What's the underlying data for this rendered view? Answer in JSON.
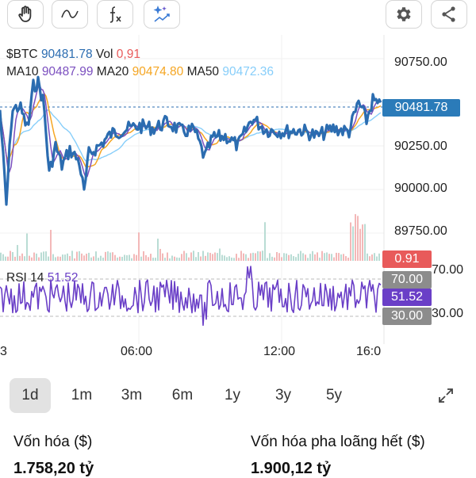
{
  "toolbar": {
    "tools": [
      "hand-icon",
      "wave-icon",
      "function-icon",
      "sparkle-chart-icon"
    ],
    "actions": [
      "gear-icon",
      "share-icon"
    ]
  },
  "legend": {
    "symbol": "$BTC",
    "price": "90481.78",
    "vol_label": "Vol",
    "vol": "0,91",
    "ma10_label": "MA10",
    "ma10": "90487.99",
    "ma20_label": "MA20",
    "ma20": "90474.80",
    "ma50_label": "MA50",
    "ma50": "90472.36",
    "rsi_label": "RSI 14",
    "rsi": "51.52"
  },
  "axis": {
    "y_labels": [
      "90750.00",
      "90250.00",
      "90000.00",
      "89750.00"
    ],
    "rsi_axis_labels": [
      "70.00",
      "30.00"
    ],
    "x_labels": [
      "3",
      "06:00",
      "12:00",
      "16:0"
    ]
  },
  "badges": {
    "price": "90481.78",
    "volume": "0.91",
    "rsi_upper": "70.00",
    "rsi_value": "51.52",
    "rsi_lower": "30.00"
  },
  "colors": {
    "price_line": "#2b6cb0",
    "ma10": "#7b4fbf",
    "ma20": "#f5a623",
    "ma50": "#87cefa",
    "rsi": "#6a3fc7",
    "badge_price": "#2b7bb9",
    "badge_volume": "#e85a5a",
    "badge_rsi": "#6a3fc7",
    "badge_gray": "#8c8c8c"
  },
  "periods": [
    "1d",
    "1m",
    "3m",
    "6m",
    "1y",
    "3y",
    "5y"
  ],
  "active_period": "1d",
  "stats": [
    {
      "label": "Vốn hóa ($)",
      "value": "1.758,20 tỷ"
    },
    {
      "label": "Vốn hóa pha loãng hết ($)",
      "value": "1.900,12 tỷ"
    }
  ]
}
